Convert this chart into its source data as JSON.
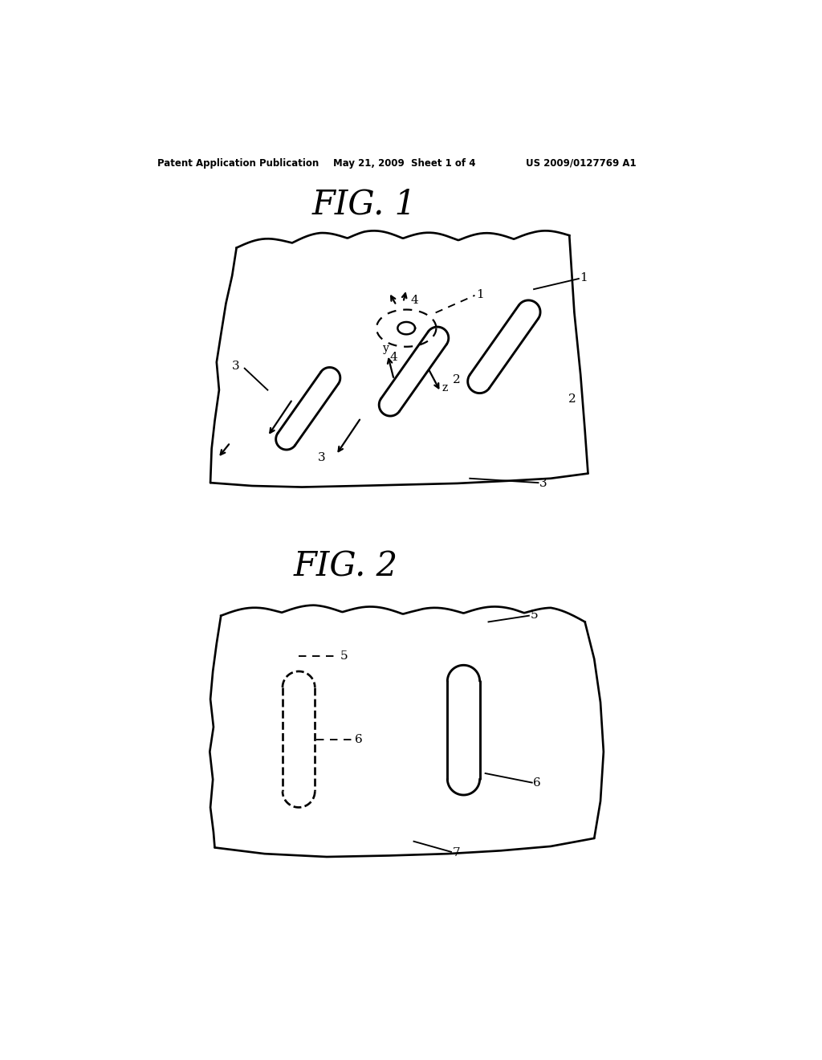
{
  "bg_color": "#ffffff",
  "header_left": "Patent Application Publication",
  "header_mid": "May 21, 2009  Sheet 1 of 4",
  "header_right": "US 2009/0127769 A1",
  "fig1_title": "FIG. 1",
  "fig2_title": "FIG. 2",
  "line_color": "#000000",
  "lw": 1.6
}
